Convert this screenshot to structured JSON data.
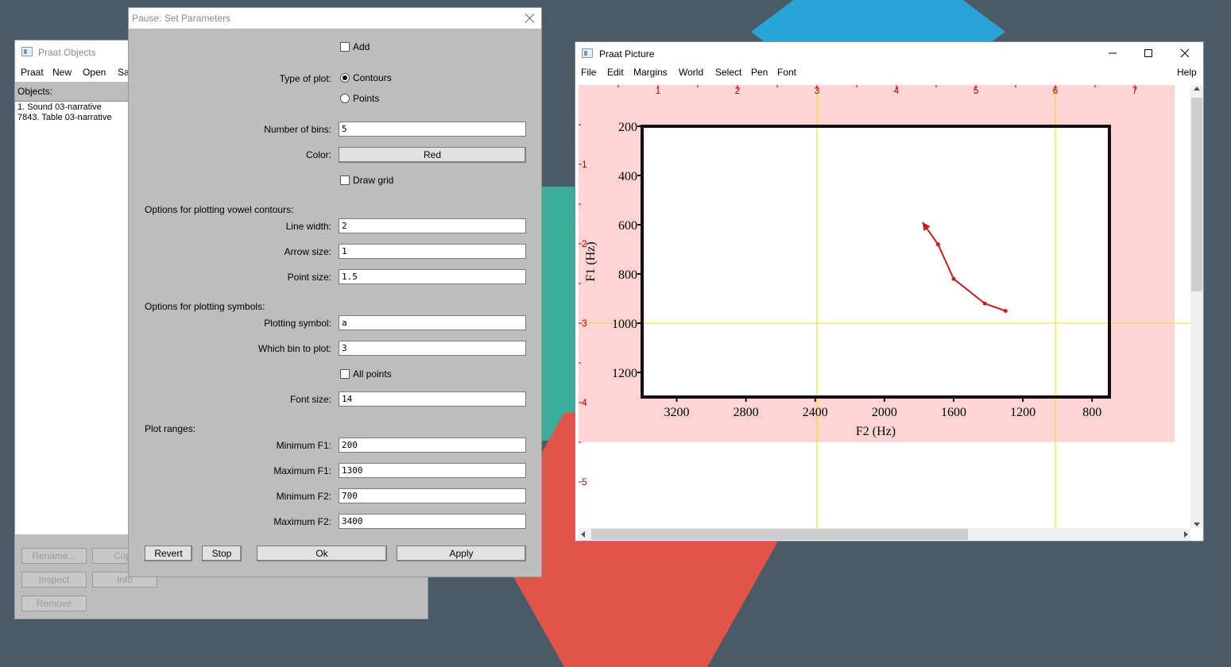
{
  "objects_window": {
    "title": "Praat Objects",
    "menu": [
      "Praat",
      "New",
      "Open",
      "Sav"
    ],
    "objects_label": "Objects:",
    "objects": [
      "1. Sound 03-narrative",
      "7843. Table 03-narrative"
    ],
    "buttons": {
      "rename": "Rename...",
      "copy": "Copy",
      "inspect": "Inspect",
      "info": "Info",
      "remove": "Remove"
    }
  },
  "dialog": {
    "title": "Pause: Set Parameters",
    "add_label": "Add",
    "type_of_plot_label": "Type of plot:",
    "type_options": [
      "Contours",
      "Points"
    ],
    "type_selected": "Contours",
    "number_of_bins_label": "Number of bins:",
    "number_of_bins": "5",
    "color_label": "Color:",
    "color_value": "Red",
    "draw_grid_label": "Draw grid",
    "contours_section": "Options for plotting vowel contours:",
    "line_width_label": "Line width:",
    "line_width": "2",
    "arrow_size_label": "Arrow size:",
    "arrow_size": "1",
    "point_size_label": "Point size:",
    "point_size": "1.5",
    "symbols_section": "Options for plotting symbols:",
    "plotting_symbol_label": "Plotting symbol:",
    "plotting_symbol": "a",
    "which_bin_label": "Which bin to plot:",
    "which_bin": "3",
    "all_points_label": "All points",
    "font_size_label": "Font size:",
    "font_size": "14",
    "ranges_section": "Plot ranges:",
    "min_f1_label": "Minimum F1:",
    "min_f1": "200",
    "max_f1_label": "Maximum F1:",
    "max_f1": "1300",
    "min_f2_label": "Minimum F2:",
    "min_f2": "700",
    "max_f2_label": "Maximum F2:",
    "max_f2": "3400",
    "buttons": {
      "revert": "Revert",
      "stop": "Stop",
      "ok": "Ok",
      "apply": "Apply"
    }
  },
  "picture_window": {
    "title": "Praat Picture",
    "menu": [
      "File",
      "Edit",
      "Margins",
      "World",
      "Select",
      "Pen",
      "Font"
    ],
    "help": "Help",
    "ruler_top": [
      "1",
      "2",
      "3",
      "4",
      "5",
      "6",
      "7"
    ],
    "ruler_left": [
      "1",
      "2",
      "3",
      "4",
      "5"
    ]
  },
  "chart_data": {
    "type": "line",
    "xlabel": "F2 (Hz)",
    "ylabel": "F1 (Hz)",
    "xlim": [
      3400,
      700
    ],
    "ylim": [
      1300,
      200
    ],
    "x_reversed": true,
    "y_reversed": true,
    "xticks": [
      3200,
      2800,
      2400,
      2000,
      1600,
      1200,
      800
    ],
    "yticks": [
      200,
      400,
      600,
      800,
      1000,
      1200
    ],
    "series": [
      {
        "color": "#c81e1e",
        "x": [
          1300,
          1420,
          1600,
          1690,
          1780
        ],
        "y": [
          950,
          920,
          820,
          680,
          590
        ],
        "arrow_at_end": true
      }
    ],
    "colors": {
      "line": "#c81e1e",
      "selection": "#ffd4d4",
      "inch_grid": "#e8e000",
      "ruler": "#c00000"
    }
  }
}
